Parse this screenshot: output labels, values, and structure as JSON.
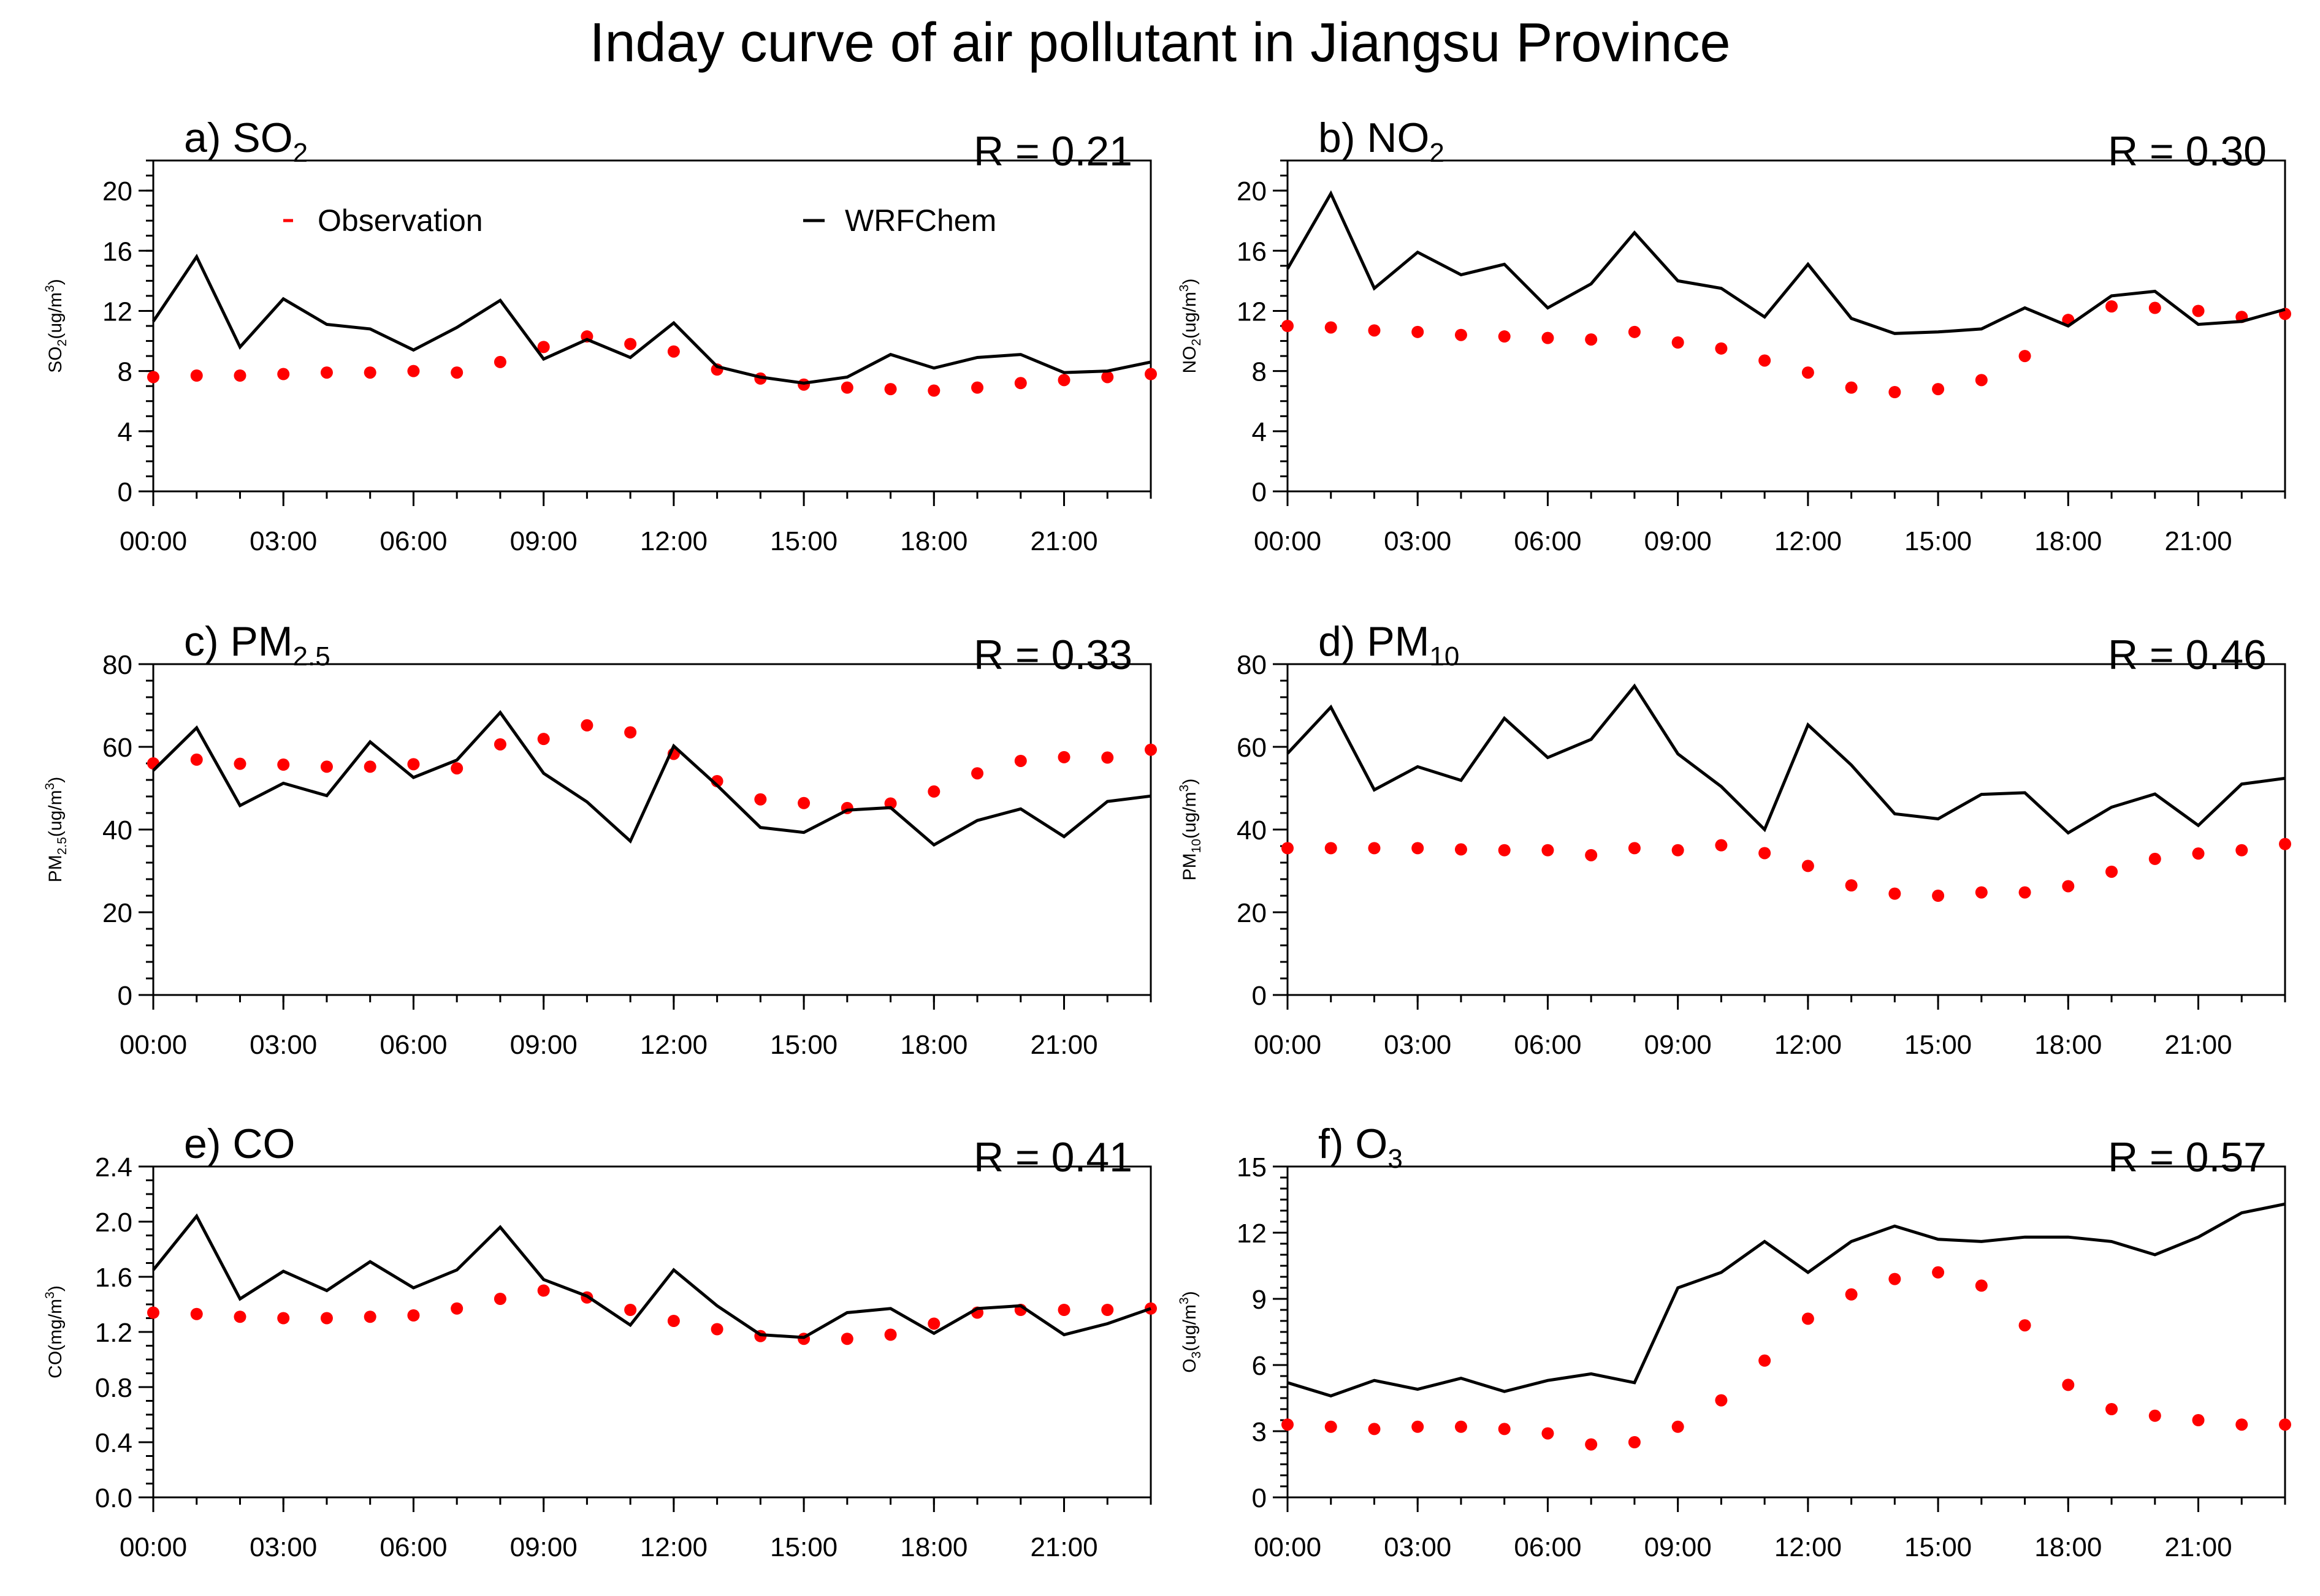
{
  "title": "Inday curve of air pollutant in Jiangsu Province",
  "legend": {
    "observation": "Observation",
    "model": "WRFChem",
    "observation_color": "#ff0000",
    "model_color": "#000000"
  },
  "chart_data": [
    {
      "type": "line",
      "panel": "a",
      "title_letter": "a)",
      "title_base": "SO",
      "title_sub": "2",
      "r_label": "R = 0.21",
      "ylabel_base": "SO",
      "ylabel_sub": "2",
      "ylabel_rest": "(ug/m",
      "ylabel_sup": "3",
      "ylabel_end": ")",
      "ylim": [
        0,
        22
      ],
      "yticks": [
        0,
        4,
        8,
        12,
        16,
        20
      ],
      "ytick_labels": [
        "0",
        "4",
        "8",
        "12",
        "16",
        "20"
      ],
      "yminor_step": 1,
      "xlim": [
        0,
        23
      ],
      "xticks": [
        0,
        3,
        6,
        9,
        12,
        15,
        18,
        21
      ],
      "xtick_labels": [
        "00:00",
        "03:00",
        "06:00",
        "09:00",
        "12:00",
        "15:00",
        "18:00",
        "21:00"
      ],
      "x": [
        0,
        1,
        2,
        3,
        4,
        5,
        6,
        7,
        8,
        9,
        10,
        11,
        12,
        13,
        14,
        15,
        16,
        17,
        18,
        19,
        20,
        21,
        22,
        23
      ],
      "series": [
        {
          "name": "Observation",
          "style": "dots",
          "values": [
            7.6,
            7.7,
            7.7,
            7.8,
            7.9,
            7.9,
            8.0,
            7.9,
            8.6,
            9.6,
            10.3,
            9.8,
            9.3,
            8.1,
            7.5,
            7.1,
            6.9,
            6.8,
            6.7,
            6.9,
            7.2,
            7.4,
            7.6,
            7.8
          ]
        },
        {
          "name": "WRFChem",
          "style": "line",
          "values": [
            11.3,
            15.6,
            9.6,
            12.8,
            11.1,
            10.8,
            9.4,
            10.9,
            12.7,
            8.8,
            10.1,
            8.9,
            11.2,
            8.3,
            7.6,
            7.2,
            7.6,
            9.1,
            8.2,
            8.9,
            9.1,
            7.9,
            8.0,
            8.6
          ]
        }
      ]
    },
    {
      "type": "line",
      "panel": "b",
      "title_letter": "b)",
      "title_base": "NO",
      "title_sub": "2",
      "r_label": "R = 0.30",
      "ylabel_base": "NO",
      "ylabel_sub": "2",
      "ylabel_rest": "(ug/m",
      "ylabel_sup": "3",
      "ylabel_end": ")",
      "ylim": [
        0,
        22
      ],
      "yticks": [
        0,
        4,
        8,
        12,
        16,
        20
      ],
      "ytick_labels": [
        "0",
        "4",
        "8",
        "12",
        "16",
        "20"
      ],
      "yminor_step": 1,
      "xlim": [
        0,
        23
      ],
      "xticks": [
        0,
        3,
        6,
        9,
        12,
        15,
        18,
        21
      ],
      "xtick_labels": [
        "00:00",
        "03:00",
        "06:00",
        "09:00",
        "12:00",
        "15:00",
        "18:00",
        "21:00"
      ],
      "x": [
        0,
        1,
        2,
        3,
        4,
        5,
        6,
        7,
        8,
        9,
        10,
        11,
        12,
        13,
        14,
        15,
        16,
        17,
        18,
        19,
        20,
        21,
        22,
        23
      ],
      "series": [
        {
          "name": "Observation",
          "style": "dots",
          "values": [
            11.0,
            10.9,
            10.7,
            10.6,
            10.4,
            10.3,
            10.2,
            10.1,
            10.6,
            9.9,
            9.5,
            8.7,
            7.9,
            6.9,
            6.6,
            6.8,
            7.4,
            9.0,
            11.4,
            12.3,
            12.2,
            12.0,
            11.6,
            11.8
          ]
        },
        {
          "name": "WRFChem",
          "style": "line",
          "values": [
            14.8,
            19.8,
            13.5,
            15.9,
            14.4,
            15.1,
            12.2,
            13.8,
            17.2,
            14.0,
            13.5,
            11.6,
            15.1,
            11.5,
            10.5,
            10.6,
            10.8,
            12.2,
            11.0,
            13.0,
            13.3,
            11.1,
            11.3,
            12.1
          ]
        }
      ]
    },
    {
      "type": "line",
      "panel": "c",
      "title_letter": "c)",
      "title_base": "PM",
      "title_sub": "2.5",
      "r_label": "R = 0.33",
      "ylabel_base": "PM",
      "ylabel_sub": "2.5",
      "ylabel_rest": "(ug/m",
      "ylabel_sup": "3",
      "ylabel_end": ")",
      "ylim": [
        0,
        80
      ],
      "yticks": [
        0,
        20,
        40,
        60,
        80
      ],
      "ytick_labels": [
        "0",
        "20",
        "40",
        "60",
        "80"
      ],
      "yminor_step": 4,
      "xlim": [
        0,
        23
      ],
      "xticks": [
        0,
        3,
        6,
        9,
        12,
        15,
        18,
        21
      ],
      "xtick_labels": [
        "00:00",
        "03:00",
        "06:00",
        "09:00",
        "12:00",
        "15:00",
        "18:00",
        "21:00"
      ],
      "x": [
        0,
        1,
        2,
        3,
        4,
        5,
        6,
        7,
        8,
        9,
        10,
        11,
        12,
        13,
        14,
        15,
        16,
        17,
        18,
        19,
        20,
        21,
        22,
        23
      ],
      "series": [
        {
          "name": "Observation",
          "style": "dots",
          "values": [
            56.0,
            56.9,
            55.9,
            55.7,
            55.2,
            55.2,
            55.8,
            54.8,
            60.6,
            61.9,
            65.2,
            63.5,
            58.3,
            51.7,
            47.3,
            46.4,
            45.2,
            46.3,
            49.2,
            53.6,
            56.6,
            57.5,
            57.4,
            59.3
          ]
        },
        {
          "name": "WRFChem",
          "style": "line",
          "values": [
            54.3,
            64.6,
            45.8,
            51.2,
            48.2,
            61.2,
            52.6,
            56.8,
            68.3,
            53.6,
            46.7,
            37.2,
            60.2,
            50.7,
            40.5,
            39.3,
            44.7,
            45.3,
            36.3,
            42.2,
            45.0,
            38.3,
            46.8,
            48.1
          ]
        }
      ]
    },
    {
      "type": "line",
      "panel": "d",
      "title_letter": "d)",
      "title_base": "PM",
      "title_sub": "10",
      "r_label": "R = 0.46",
      "ylabel_base": "PM",
      "ylabel_sub": "10",
      "ylabel_rest": "(ug/m",
      "ylabel_sup": "3",
      "ylabel_end": ")",
      "ylim": [
        0,
        80
      ],
      "yticks": [
        0,
        20,
        40,
        60,
        80
      ],
      "ytick_labels": [
        "0",
        "20",
        "40",
        "60",
        "80"
      ],
      "yminor_step": 4,
      "xlim": [
        0,
        23
      ],
      "xticks": [
        0,
        3,
        6,
        9,
        12,
        15,
        18,
        21
      ],
      "xtick_labels": [
        "00:00",
        "03:00",
        "06:00",
        "09:00",
        "12:00",
        "15:00",
        "18:00",
        "21:00"
      ],
      "x": [
        0,
        1,
        2,
        3,
        4,
        5,
        6,
        7,
        8,
        9,
        10,
        11,
        12,
        13,
        14,
        15,
        16,
        17,
        18,
        19,
        20,
        21,
        22,
        23
      ],
      "series": [
        {
          "name": "Observation",
          "style": "dots",
          "values": [
            35.5,
            35.5,
            35.5,
            35.5,
            35.2,
            35.0,
            35.0,
            33.8,
            35.5,
            35.0,
            36.2,
            34.3,
            31.2,
            26.5,
            24.5,
            24.0,
            24.8,
            24.8,
            26.3,
            29.8,
            32.9,
            34.2,
            35.0,
            36.5
          ]
        },
        {
          "name": "WRFChem",
          "style": "line",
          "values": [
            58.4,
            69.6,
            49.6,
            55.2,
            51.9,
            66.9,
            57.4,
            61.8,
            74.7,
            58.3,
            50.4,
            40.0,
            65.3,
            55.6,
            43.8,
            42.6,
            48.5,
            48.9,
            39.2,
            45.4,
            48.6,
            41.0,
            51.0,
            52.4
          ]
        }
      ]
    },
    {
      "type": "line",
      "panel": "e",
      "title_letter": "e)",
      "title_base": "CO",
      "title_sub": "",
      "r_label": "R = 0.41",
      "ylabel_base": "CO",
      "ylabel_sub": "",
      "ylabel_rest": "(mg/m",
      "ylabel_sup": "3",
      "ylabel_end": ")",
      "ylim": [
        0,
        2.4
      ],
      "yticks": [
        0,
        0.4,
        0.8,
        1.2,
        1.6,
        2.0,
        2.4
      ],
      "ytick_labels": [
        "0.0",
        "0.4",
        "0.8",
        "1.2",
        "1.6",
        "2.0",
        "2.4"
      ],
      "yminor_step": 0.1,
      "xlim": [
        0,
        23
      ],
      "xticks": [
        0,
        3,
        6,
        9,
        12,
        15,
        18,
        21
      ],
      "xtick_labels": [
        "00:00",
        "03:00",
        "06:00",
        "09:00",
        "12:00",
        "15:00",
        "18:00",
        "21:00"
      ],
      "x": [
        0,
        1,
        2,
        3,
        4,
        5,
        6,
        7,
        8,
        9,
        10,
        11,
        12,
        13,
        14,
        15,
        16,
        17,
        18,
        19,
        20,
        21,
        22,
        23
      ],
      "series": [
        {
          "name": "Observation",
          "style": "dots",
          "values": [
            1.34,
            1.33,
            1.31,
            1.3,
            1.3,
            1.31,
            1.32,
            1.37,
            1.44,
            1.5,
            1.45,
            1.36,
            1.28,
            1.22,
            1.17,
            1.15,
            1.15,
            1.18,
            1.26,
            1.34,
            1.36,
            1.36,
            1.36,
            1.37
          ]
        },
        {
          "name": "WRFChem",
          "style": "line",
          "values": [
            1.65,
            2.04,
            1.44,
            1.64,
            1.5,
            1.71,
            1.52,
            1.65,
            1.96,
            1.58,
            1.46,
            1.25,
            1.65,
            1.39,
            1.18,
            1.16,
            1.34,
            1.37,
            1.19,
            1.37,
            1.39,
            1.18,
            1.26,
            1.37
          ]
        }
      ]
    },
    {
      "type": "line",
      "panel": "f",
      "title_letter": "f)",
      "title_base": "O",
      "title_sub": "3",
      "r_label": "R = 0.57",
      "ylabel_base": "O",
      "ylabel_sub": "3",
      "ylabel_rest": "(ug/m",
      "ylabel_sup": "3",
      "ylabel_end": ")",
      "ylim": [
        0,
        15
      ],
      "yticks": [
        0,
        3,
        6,
        9,
        12,
        15
      ],
      "ytick_labels": [
        "0",
        "3",
        "6",
        "9",
        "12",
        "15"
      ],
      "yminor_step": 0.5,
      "xlim": [
        0,
        23
      ],
      "xticks": [
        0,
        3,
        6,
        9,
        12,
        15,
        18,
        21
      ],
      "xtick_labels": [
        "00:00",
        "03:00",
        "06:00",
        "09:00",
        "12:00",
        "15:00",
        "18:00",
        "21:00"
      ],
      "x": [
        0,
        1,
        2,
        3,
        4,
        5,
        6,
        7,
        8,
        9,
        10,
        11,
        12,
        13,
        14,
        15,
        16,
        17,
        18,
        19,
        20,
        21,
        22,
        23
      ],
      "series": [
        {
          "name": "Observation",
          "style": "dots",
          "values": [
            3.3,
            3.2,
            3.1,
            3.2,
            3.2,
            3.1,
            2.9,
            2.4,
            2.5,
            3.2,
            4.4,
            6.2,
            8.1,
            9.2,
            9.9,
            10.2,
            9.6,
            7.8,
            5.1,
            4.0,
            3.7,
            3.5,
            3.3,
            3.3
          ]
        },
        {
          "name": "WRFChem",
          "style": "line",
          "values": [
            5.2,
            4.6,
            5.3,
            4.9,
            5.4,
            4.8,
            5.3,
            5.6,
            5.2,
            9.5,
            10.2,
            11.6,
            10.2,
            11.6,
            12.3,
            11.7,
            11.6,
            11.8,
            11.8,
            11.6,
            11.0,
            11.8,
            12.9,
            13.3
          ]
        }
      ]
    }
  ]
}
